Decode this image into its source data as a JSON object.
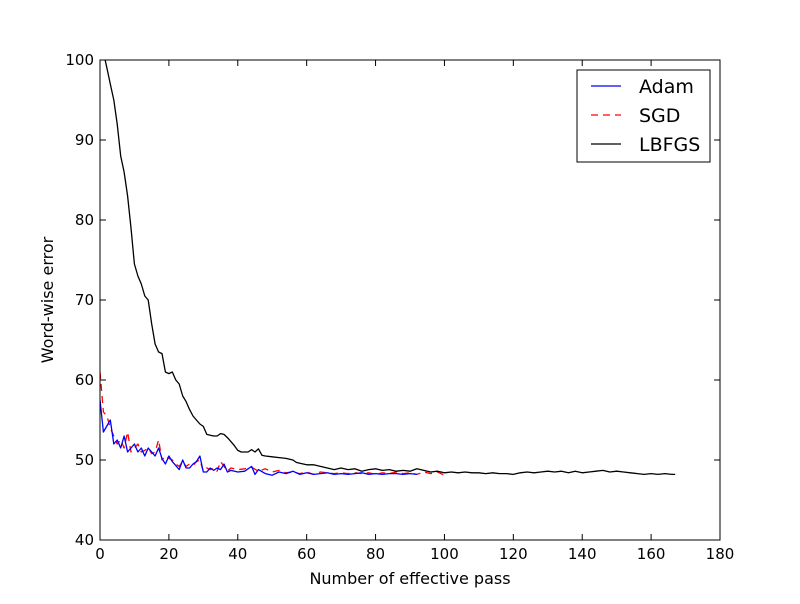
{
  "chart_data": {
    "type": "line",
    "title": "",
    "xlabel": "Number of effective pass",
    "ylabel": "Word-wise error",
    "xlim": [
      0,
      180
    ],
    "ylim": [
      40,
      100
    ],
    "xticks": [
      0,
      20,
      40,
      60,
      80,
      100,
      120,
      140,
      160,
      180
    ],
    "yticks": [
      40,
      50,
      60,
      70,
      80,
      90,
      100
    ],
    "grid": false,
    "legend_position": "top-right",
    "series": [
      {
        "name": "Adam",
        "color": "#0000ff",
        "style": "solid",
        "points": [
          [
            0,
            57.5
          ],
          [
            1,
            53.5
          ],
          [
            3,
            55
          ],
          [
            4,
            52
          ],
          [
            5,
            52.5
          ],
          [
            6,
            51.5
          ],
          [
            7,
            53
          ],
          [
            8,
            51
          ],
          [
            9,
            51.5
          ],
          [
            10,
            52
          ],
          [
            11,
            51
          ],
          [
            12,
            51.5
          ],
          [
            13,
            50.5
          ],
          [
            14,
            51.5
          ],
          [
            15,
            51
          ],
          [
            16,
            50.5
          ],
          [
            17,
            51.5
          ],
          [
            18,
            50.2
          ],
          [
            19,
            49.5
          ],
          [
            20,
            50.5
          ],
          [
            21,
            49.8
          ],
          [
            22,
            49.3
          ],
          [
            23,
            48.8
          ],
          [
            24,
            50
          ],
          [
            25,
            49
          ],
          [
            26,
            49
          ],
          [
            27,
            49.5
          ],
          [
            28,
            49.8
          ],
          [
            29,
            50.5
          ],
          [
            30,
            48.5
          ],
          [
            31,
            48.5
          ],
          [
            32,
            49
          ],
          [
            33,
            48.7
          ],
          [
            34,
            49
          ],
          [
            35,
            48.8
          ],
          [
            36,
            49.5
          ],
          [
            37,
            48.5
          ],
          [
            38,
            48.7
          ],
          [
            40,
            48.5
          ],
          [
            42,
            48.6
          ],
          [
            44,
            49.2
          ],
          [
            45,
            48.2
          ],
          [
            46,
            48.8
          ],
          [
            48,
            48.3
          ],
          [
            50,
            48.1
          ],
          [
            52,
            48.5
          ],
          [
            54,
            48.3
          ],
          [
            56,
            48.6
          ],
          [
            58,
            48.2
          ],
          [
            60,
            48.4
          ],
          [
            62,
            48.2
          ],
          [
            64,
            48.3
          ],
          [
            66,
            48.4
          ],
          [
            68,
            48.2
          ],
          [
            70,
            48.3
          ],
          [
            72,
            48.2
          ],
          [
            74,
            48.3
          ],
          [
            76,
            48.4
          ],
          [
            78,
            48.2
          ],
          [
            80,
            48.3
          ],
          [
            82,
            48.2
          ],
          [
            84,
            48.3
          ],
          [
            86,
            48.3
          ],
          [
            88,
            48.2
          ],
          [
            90,
            48.3
          ],
          [
            92,
            48.2
          ]
        ]
      },
      {
        "name": "SGD",
        "color": "#ff0000",
        "style": "dashed",
        "points": [
          [
            0,
            61
          ],
          [
            1,
            56
          ],
          [
            2,
            55.5
          ],
          [
            3,
            54
          ],
          [
            4,
            53
          ],
          [
            5,
            52
          ],
          [
            6,
            52.5
          ],
          [
            7,
            51.5
          ],
          [
            8,
            53.5
          ],
          [
            9,
            51
          ],
          [
            10,
            51.5
          ],
          [
            11,
            52
          ],
          [
            12,
            51
          ],
          [
            13,
            51.2
          ],
          [
            14,
            51.5
          ],
          [
            15,
            50.8
          ],
          [
            16,
            51
          ],
          [
            17,
            52.5
          ],
          [
            18,
            50
          ],
          [
            19,
            50.5
          ],
          [
            20,
            50.2
          ],
          [
            21,
            50
          ],
          [
            22,
            49.5
          ],
          [
            23,
            49.2
          ],
          [
            24,
            49.8
          ],
          [
            25,
            49.2
          ],
          [
            26,
            49.5
          ],
          [
            27,
            49.3
          ],
          [
            28,
            49.8
          ],
          [
            29,
            50
          ],
          [
            30,
            48.6
          ],
          [
            31,
            49
          ],
          [
            32,
            48.8
          ],
          [
            33,
            49
          ],
          [
            34,
            48.6
          ],
          [
            35,
            49.8
          ],
          [
            36,
            49.2
          ],
          [
            37,
            48.6
          ],
          [
            38,
            49
          ],
          [
            40,
            48.8
          ],
          [
            42,
            48.9
          ],
          [
            44,
            49.1
          ],
          [
            46,
            48.6
          ],
          [
            48,
            48.9
          ],
          [
            50,
            48.5
          ],
          [
            52,
            48.7
          ],
          [
            54,
            48.4
          ],
          [
            56,
            48.5
          ],
          [
            58,
            48.3
          ],
          [
            60,
            48.5
          ],
          [
            62,
            48.2
          ],
          [
            64,
            48.5
          ],
          [
            66,
            48.4
          ],
          [
            68,
            48.3
          ],
          [
            70,
            48.4
          ],
          [
            72,
            48.3
          ],
          [
            74,
            48.4
          ],
          [
            76,
            48.3
          ],
          [
            78,
            48.4
          ],
          [
            80,
            48.2
          ],
          [
            82,
            48.4
          ],
          [
            84,
            48.3
          ],
          [
            86,
            48.5
          ],
          [
            88,
            48.3
          ],
          [
            90,
            48.4
          ],
          [
            92,
            48.2
          ],
          [
            94,
            48.5
          ],
          [
            96,
            48.3
          ],
          [
            98,
            48.5
          ],
          [
            100,
            48.1
          ]
        ]
      },
      {
        "name": "LBFGS",
        "color": "#000000",
        "style": "solid",
        "points": [
          [
            0,
            106
          ],
          [
            1,
            101
          ],
          [
            2,
            99
          ],
          [
            3,
            97
          ],
          [
            4,
            95
          ],
          [
            5,
            92
          ],
          [
            6,
            88
          ],
          [
            7,
            86
          ],
          [
            8,
            83
          ],
          [
            9,
            79
          ],
          [
            10,
            74.5
          ],
          [
            11,
            73
          ],
          [
            12,
            72
          ],
          [
            13,
            70.5
          ],
          [
            14,
            70
          ],
          [
            15,
            67
          ],
          [
            16,
            64.5
          ],
          [
            17,
            63.5
          ],
          [
            18,
            63.3
          ],
          [
            19,
            61
          ],
          [
            20,
            60.8
          ],
          [
            21,
            61
          ],
          [
            22,
            60
          ],
          [
            23,
            59.5
          ],
          [
            24,
            58
          ],
          [
            25,
            57.3
          ],
          [
            26,
            56.3
          ],
          [
            27,
            55.5
          ],
          [
            28,
            55
          ],
          [
            29,
            54.5
          ],
          [
            30,
            54.2
          ],
          [
            31,
            53.2
          ],
          [
            32,
            53.1
          ],
          [
            33,
            53
          ],
          [
            34,
            53
          ],
          [
            35,
            53.3
          ],
          [
            36,
            53.2
          ],
          [
            37,
            52.8
          ],
          [
            38,
            52.3
          ],
          [
            39,
            51.8
          ],
          [
            40,
            51.2
          ],
          [
            41,
            51
          ],
          [
            42,
            51
          ],
          [
            43,
            51
          ],
          [
            44,
            51.3
          ],
          [
            45,
            51
          ],
          [
            46,
            51.4
          ],
          [
            47,
            50.6
          ],
          [
            48,
            50.5
          ],
          [
            50,
            50.4
          ],
          [
            52,
            50.3
          ],
          [
            54,
            50.2
          ],
          [
            56,
            50
          ],
          [
            57,
            49.7
          ],
          [
            58,
            49.6
          ],
          [
            60,
            49.4
          ],
          [
            62,
            49.4
          ],
          [
            64,
            49.2
          ],
          [
            66,
            49
          ],
          [
            68,
            48.8
          ],
          [
            70,
            49
          ],
          [
            72,
            48.8
          ],
          [
            74,
            48.9
          ],
          [
            76,
            48.6
          ],
          [
            78,
            48.8
          ],
          [
            80,
            48.9
          ],
          [
            82,
            48.7
          ],
          [
            84,
            48.8
          ],
          [
            86,
            48.6
          ],
          [
            88,
            48.7
          ],
          [
            90,
            48.6
          ],
          [
            92,
            48.9
          ],
          [
            94,
            48.7
          ],
          [
            96,
            48.5
          ],
          [
            98,
            48.6
          ],
          [
            100,
            48.4
          ],
          [
            102,
            48.5
          ],
          [
            104,
            48.4
          ],
          [
            106,
            48.5
          ],
          [
            108,
            48.4
          ],
          [
            110,
            48.4
          ],
          [
            112,
            48.3
          ],
          [
            114,
            48.4
          ],
          [
            116,
            48.3
          ],
          [
            118,
            48.3
          ],
          [
            120,
            48.2
          ],
          [
            122,
            48.4
          ],
          [
            124,
            48.5
          ],
          [
            126,
            48.4
          ],
          [
            128,
            48.5
          ],
          [
            130,
            48.6
          ],
          [
            132,
            48.5
          ],
          [
            134,
            48.6
          ],
          [
            136,
            48.4
          ],
          [
            138,
            48.6
          ],
          [
            140,
            48.4
          ],
          [
            142,
            48.5
          ],
          [
            144,
            48.6
          ],
          [
            146,
            48.7
          ],
          [
            148,
            48.5
          ],
          [
            150,
            48.6
          ],
          [
            152,
            48.5
          ],
          [
            154,
            48.4
          ],
          [
            156,
            48.3
          ],
          [
            158,
            48.2
          ],
          [
            160,
            48.3
          ],
          [
            162,
            48.2
          ],
          [
            164,
            48.3
          ],
          [
            166,
            48.2
          ],
          [
            167,
            48.2
          ]
        ]
      }
    ]
  }
}
